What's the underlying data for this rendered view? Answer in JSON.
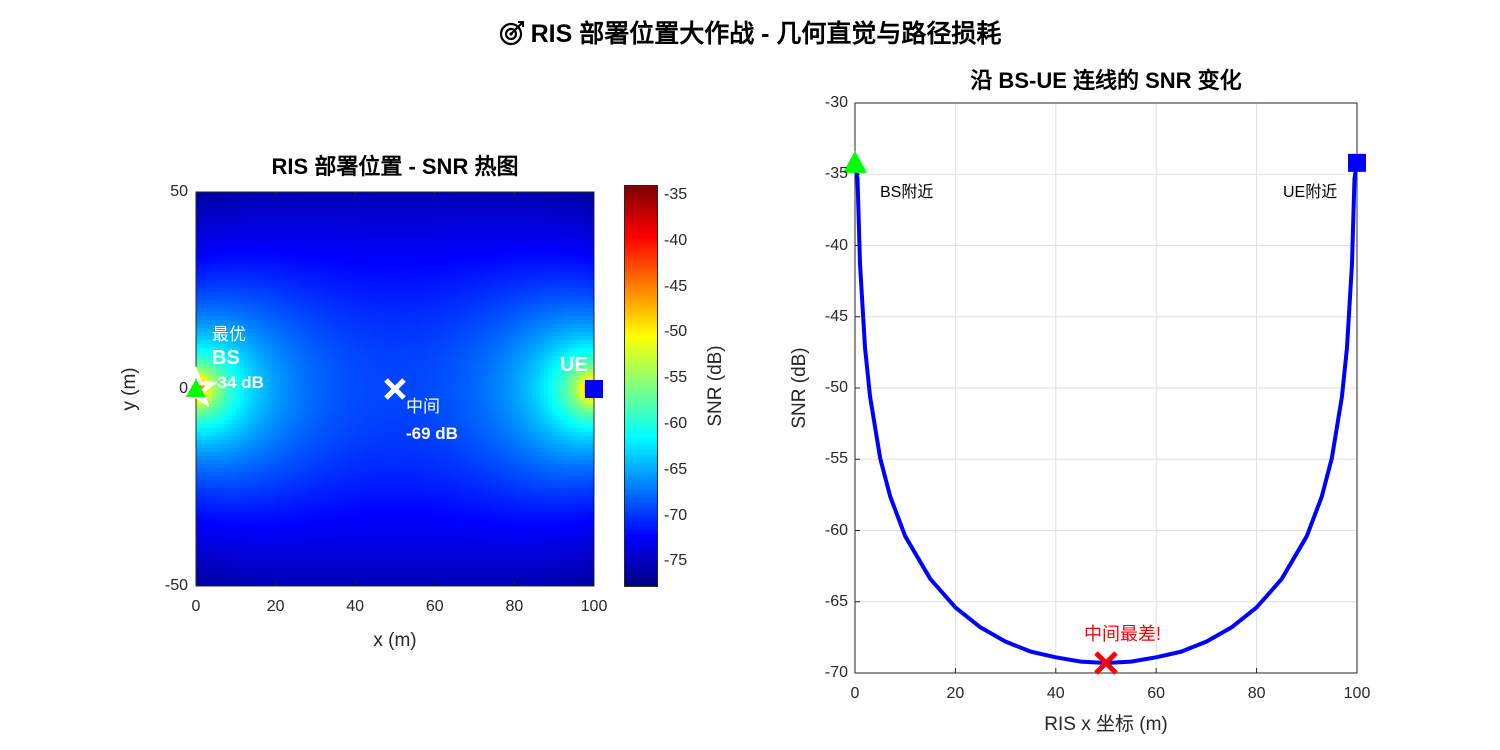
{
  "figure_title": "RIS 部署位置大作战 - 几何直觉与路径损耗",
  "title_icon": "target-icon",
  "chart_data": [
    {
      "type": "heatmap",
      "title": "RIS 部署位置 - SNR 热图",
      "xlabel": "x (m)",
      "ylabel": "y (m)",
      "xlim": [
        0,
        100
      ],
      "ylim": [
        -50,
        50
      ],
      "xticks": [
        "0",
        "20",
        "40",
        "60",
        "80",
        "100"
      ],
      "yticks": [
        "-50",
        "0",
        "50"
      ],
      "colormap": "jet",
      "colorbar": {
        "label": "SNR (dB)",
        "range": [
          -77.7,
          -34
        ],
        "ticks": [
          "-35",
          "-40",
          "-45",
          "-50",
          "-55",
          "-60",
          "-65",
          "-70",
          "-75"
        ]
      },
      "bs": {
        "x": 0,
        "y": 0,
        "label": "BS",
        "color": "#00ff00",
        "marker": "triangle"
      },
      "ue": {
        "x": 100,
        "y": 0,
        "label": "UE",
        "color": "#0000ff",
        "marker": "square"
      },
      "optimal": {
        "x": 0,
        "y": 0,
        "label": "最优",
        "value": "-34 dB",
        "marker": "star"
      },
      "middle": {
        "x": 50,
        "y": 0,
        "label": "中间",
        "value": "-69 dB",
        "marker": "x"
      },
      "grid": false
    },
    {
      "type": "line",
      "title": "沿 BS-UE 连线的 SNR 变化",
      "xlabel": "RIS x 坐标 (m)",
      "ylabel": "SNR (dB)",
      "xlim": [
        0,
        100
      ],
      "ylim": [
        -70,
        -30
      ],
      "xticks": [
        "0",
        "20",
        "40",
        "60",
        "80",
        "100"
      ],
      "yticks": [
        "-30",
        "-35",
        "-40",
        "-45",
        "-50",
        "-55",
        "-60",
        "-65",
        "-70"
      ],
      "grid": true,
      "series": [
        {
          "color": "#0000ff",
          "x": [
            0,
            0.5,
            1,
            2,
            3,
            5,
            7,
            10,
            15,
            20,
            25,
            30,
            35,
            40,
            45,
            50,
            55,
            60,
            65,
            70,
            75,
            80,
            85,
            90,
            93,
            95,
            97,
            98,
            99,
            99.5,
            100
          ],
          "y": [
            -34.2,
            -35.3,
            -41.3,
            -47.2,
            -50.6,
            -54.9,
            -57.6,
            -60.4,
            -63.4,
            -65.4,
            -66.8,
            -67.8,
            -68.5,
            -68.9,
            -69.2,
            -69.3,
            -69.2,
            -68.9,
            -68.5,
            -67.8,
            -66.8,
            -65.4,
            -63.4,
            -60.4,
            -57.6,
            -54.9,
            -50.6,
            -47.2,
            -41.3,
            -35.3,
            -34.2
          ]
        }
      ],
      "annotations": [
        {
          "text": "BS附近",
          "x": 0,
          "y": -34.2,
          "marker": "triangle",
          "color": "#00ff00"
        },
        {
          "text": "UE附近",
          "x": 100,
          "y": -34.2,
          "marker": "square",
          "color": "#0000ff"
        },
        {
          "text": "中间最差!",
          "x": 50,
          "y": -69.3,
          "marker": "x",
          "color": "#ff0000"
        }
      ]
    }
  ]
}
